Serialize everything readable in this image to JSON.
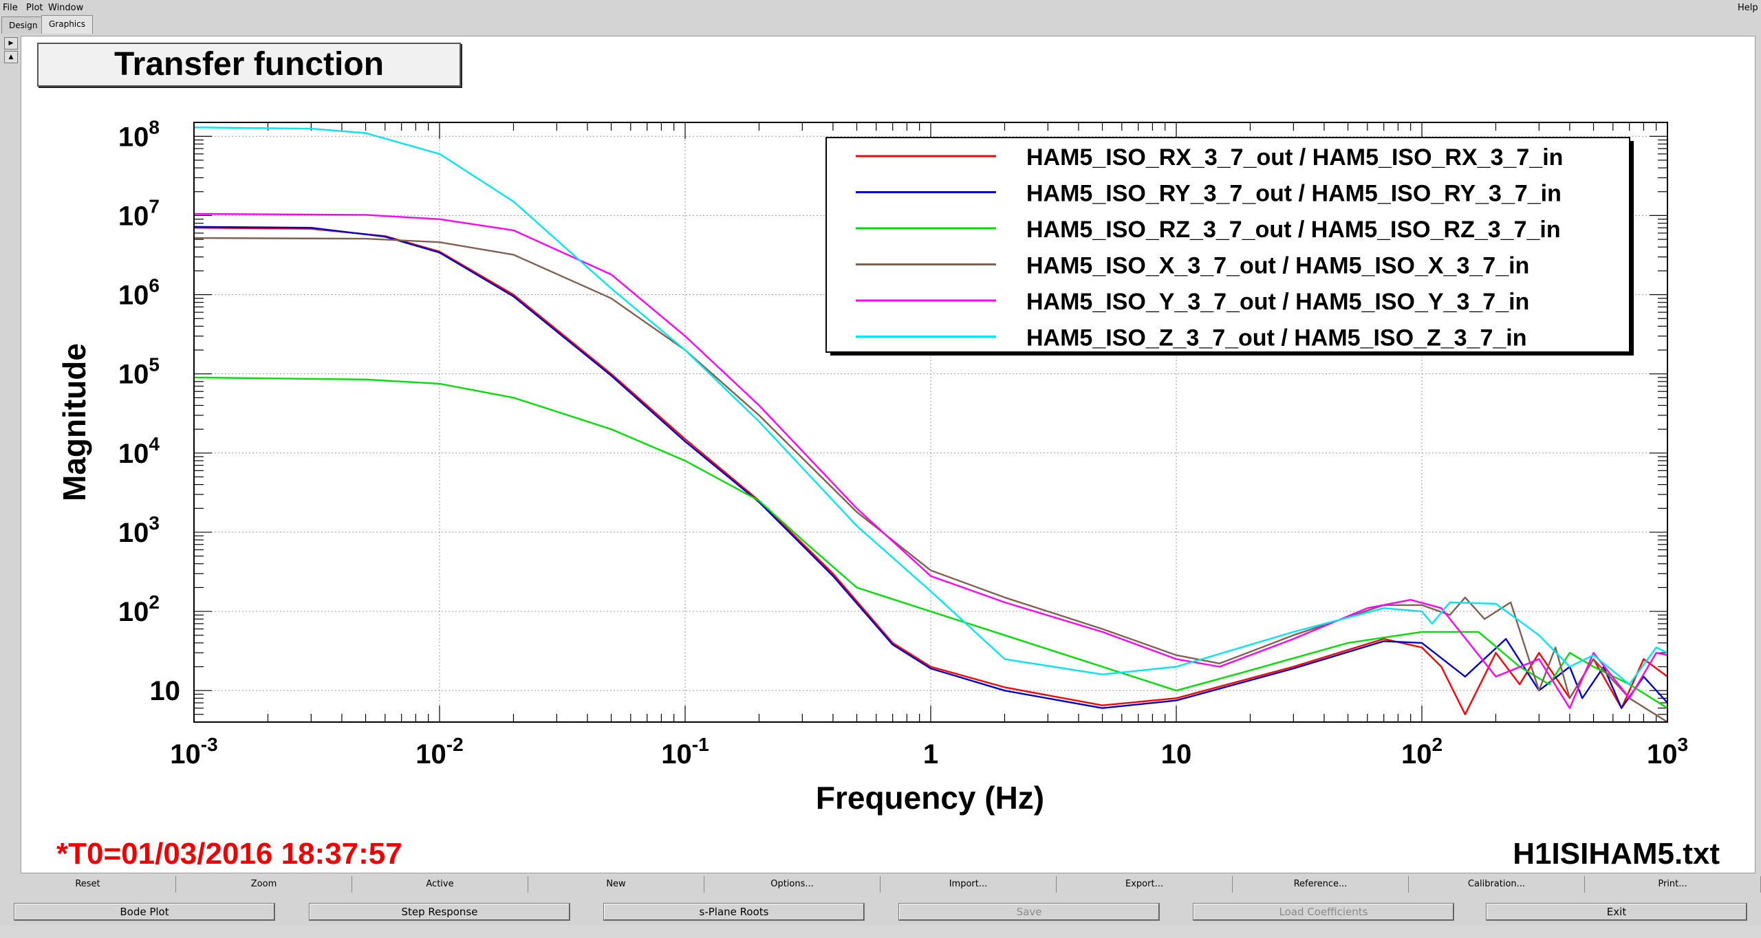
{
  "menu": {
    "file": "File",
    "plot": "Plot",
    "window": "Window",
    "help": "Help"
  },
  "tabs": [
    "Design",
    "Graphics"
  ],
  "plot_title": "Transfer function",
  "bottom_left_text": "*T0=01/03/2016 18:37:57",
  "bottom_right_text": "H1ISIHAM5.txt",
  "colors": {
    "red": "#ff0000",
    "blue": "#0000cc",
    "green": "#00dd00",
    "brown": "#806050",
    "magenta": "#ff00ff",
    "cyan": "#00e5f0",
    "timestamp": "#ee0000"
  },
  "chart_data": {
    "type": "line",
    "xlabel": "Frequency (Hz)",
    "ylabel": "Magnitude",
    "xscale": "log",
    "yscale": "log",
    "xlim": [
      0.001,
      1000
    ],
    "ylim": [
      4,
      150000000
    ],
    "x_ticks": [
      {
        "base": "10",
        "exp": "-3"
      },
      {
        "base": "10",
        "exp": "-2"
      },
      {
        "base": "10",
        "exp": "-1"
      },
      {
        "base": "1",
        "exp": ""
      },
      {
        "base": "10",
        "exp": ""
      },
      {
        "base": "10",
        "exp": "2"
      },
      {
        "base": "10",
        "exp": "3"
      }
    ],
    "y_ticks": [
      {
        "base": "10",
        "exp": ""
      },
      {
        "base": "10",
        "exp": "2"
      },
      {
        "base": "10",
        "exp": "3"
      },
      {
        "base": "10",
        "exp": "4"
      },
      {
        "base": "10",
        "exp": "5"
      },
      {
        "base": "10",
        "exp": "6"
      },
      {
        "base": "10",
        "exp": "7"
      },
      {
        "base": "10",
        "exp": "8"
      }
    ],
    "grid": true,
    "legend_position": "top-right",
    "series": [
      {
        "name": "HAM5_ISO_RX_3_7_out / HAM5_ISO_RX_3_7_in",
        "color": "#ff0000",
        "points": [
          [
            0.001,
            7000000
          ],
          [
            0.003,
            6800000
          ],
          [
            0.006,
            5500000
          ],
          [
            0.01,
            3500000
          ],
          [
            0.02,
            1000000
          ],
          [
            0.05,
            100000
          ],
          [
            0.1,
            15000
          ],
          [
            0.2,
            2500
          ],
          [
            0.4,
            300
          ],
          [
            0.7,
            40
          ],
          [
            1,
            20
          ],
          [
            2,
            11
          ],
          [
            5,
            6.5
          ],
          [
            10,
            8
          ],
          [
            30,
            20
          ],
          [
            70,
            45
          ],
          [
            100,
            35
          ],
          [
            120,
            20
          ],
          [
            150,
            5
          ],
          [
            200,
            30
          ],
          [
            250,
            12
          ],
          [
            300,
            30
          ],
          [
            400,
            8
          ],
          [
            500,
            25
          ],
          [
            650,
            6
          ],
          [
            800,
            25
          ],
          [
            1000,
            15
          ]
        ]
      },
      {
        "name": "HAM5_ISO_RY_3_7_out / HAM5_ISO_RY_3_7_in",
        "color": "#0000cc",
        "points": [
          [
            0.001,
            7200000
          ],
          [
            0.003,
            7000000
          ],
          [
            0.006,
            5400000
          ],
          [
            0.01,
            3400000
          ],
          [
            0.02,
            950000
          ],
          [
            0.05,
            95000
          ],
          [
            0.1,
            14000
          ],
          [
            0.2,
            2400
          ],
          [
            0.4,
            280
          ],
          [
            0.7,
            38
          ],
          [
            1,
            19
          ],
          [
            2,
            10
          ],
          [
            5,
            6
          ],
          [
            10,
            7.5
          ],
          [
            30,
            19
          ],
          [
            70,
            42
          ],
          [
            100,
            40
          ],
          [
            150,
            15
          ],
          [
            220,
            45
          ],
          [
            300,
            10
          ],
          [
            400,
            20
          ],
          [
            450,
            8
          ],
          [
            550,
            20
          ],
          [
            650,
            6
          ],
          [
            800,
            15
          ],
          [
            1000,
            7
          ]
        ]
      },
      {
        "name": "HAM5_ISO_RZ_3_7_out / HAM5_ISO_RZ_3_7_in",
        "color": "#00dd00",
        "points": [
          [
            0.001,
            90000
          ],
          [
            0.005,
            85000
          ],
          [
            0.01,
            75000
          ],
          [
            0.02,
            50000
          ],
          [
            0.05,
            20000
          ],
          [
            0.1,
            8000
          ],
          [
            0.2,
            2500
          ],
          [
            0.3,
            800
          ],
          [
            0.5,
            200
          ],
          [
            1,
            100
          ],
          [
            2,
            50
          ],
          [
            5,
            20
          ],
          [
            10,
            10
          ],
          [
            20,
            18
          ],
          [
            50,
            40
          ],
          [
            100,
            55
          ],
          [
            170,
            55
          ],
          [
            250,
            20
          ],
          [
            330,
            12
          ],
          [
            400,
            30
          ],
          [
            500,
            20
          ],
          [
            700,
            12
          ],
          [
            1000,
            6
          ]
        ]
      },
      {
        "name": "HAM5_ISO_X_3_7_out / HAM5_ISO_X_3_7_in",
        "color": "#806050",
        "points": [
          [
            0.001,
            5200000
          ],
          [
            0.005,
            5100000
          ],
          [
            0.01,
            4600000
          ],
          [
            0.02,
            3200000
          ],
          [
            0.05,
            900000
          ],
          [
            0.1,
            200000
          ],
          [
            0.2,
            30000
          ],
          [
            0.5,
            1800
          ],
          [
            1,
            330
          ],
          [
            2,
            150
          ],
          [
            5,
            60
          ],
          [
            10,
            28
          ],
          [
            15,
            22
          ],
          [
            30,
            50
          ],
          [
            70,
            120
          ],
          [
            100,
            120
          ],
          [
            130,
            90
          ],
          [
            150,
            150
          ],
          [
            180,
            80
          ],
          [
            230,
            130
          ],
          [
            300,
            10
          ],
          [
            350,
            35
          ],
          [
            400,
            8
          ],
          [
            500,
            25
          ],
          [
            700,
            8
          ],
          [
            1000,
            4
          ]
        ]
      },
      {
        "name": "HAM5_ISO_Y_3_7_out / HAM5_ISO_Y_3_7_in",
        "color": "#ff00ff",
        "points": [
          [
            0.001,
            10500000
          ],
          [
            0.005,
            10200000
          ],
          [
            0.01,
            9000000
          ],
          [
            0.02,
            6500000
          ],
          [
            0.05,
            1800000
          ],
          [
            0.1,
            300000
          ],
          [
            0.2,
            40000
          ],
          [
            0.5,
            2000
          ],
          [
            1,
            280
          ],
          [
            2,
            130
          ],
          [
            5,
            55
          ],
          [
            10,
            25
          ],
          [
            15,
            20
          ],
          [
            30,
            45
          ],
          [
            60,
            110
          ],
          [
            90,
            140
          ],
          [
            120,
            110
          ],
          [
            200,
            15
          ],
          [
            300,
            25
          ],
          [
            400,
            6
          ],
          [
            500,
            30
          ],
          [
            700,
            8
          ],
          [
            900,
            30
          ],
          [
            1000,
            28
          ]
        ]
      },
      {
        "name": "HAM5_ISO_Z_3_7_out / HAM5_ISO_Z_3_7_in",
        "color": "#00e5f0",
        "points": [
          [
            0.001,
            130000000
          ],
          [
            0.003,
            125000000
          ],
          [
            0.005,
            110000000
          ],
          [
            0.01,
            60000000
          ],
          [
            0.02,
            15000000
          ],
          [
            0.05,
            1200000
          ],
          [
            0.1,
            200000
          ],
          [
            0.2,
            25000
          ],
          [
            0.5,
            1200
          ],
          [
            1,
            180
          ],
          [
            2,
            25
          ],
          [
            5,
            16
          ],
          [
            10,
            20
          ],
          [
            30,
            55
          ],
          [
            70,
            110
          ],
          [
            100,
            100
          ],
          [
            110,
            70
          ],
          [
            130,
            130
          ],
          [
            200,
            125
          ],
          [
            300,
            50
          ],
          [
            400,
            20
          ],
          [
            500,
            28
          ],
          [
            700,
            12
          ],
          [
            900,
            35
          ],
          [
            1000,
            30
          ]
        ]
      }
    ]
  },
  "toolbar1": [
    "Reset",
    "Zoom",
    "Active",
    "New",
    "Options...",
    "Import...",
    "Export...",
    "Reference...",
    "Calibration...",
    "Print..."
  ],
  "toolbar2": [
    {
      "label": "Bode Plot",
      "enabled": true
    },
    {
      "label": "Step Response",
      "enabled": true
    },
    {
      "label": "s-Plane Roots",
      "enabled": true
    },
    {
      "label": "Save",
      "enabled": false
    },
    {
      "label": "Load Coefficients",
      "enabled": false
    },
    {
      "label": "Exit",
      "enabled": true
    }
  ]
}
